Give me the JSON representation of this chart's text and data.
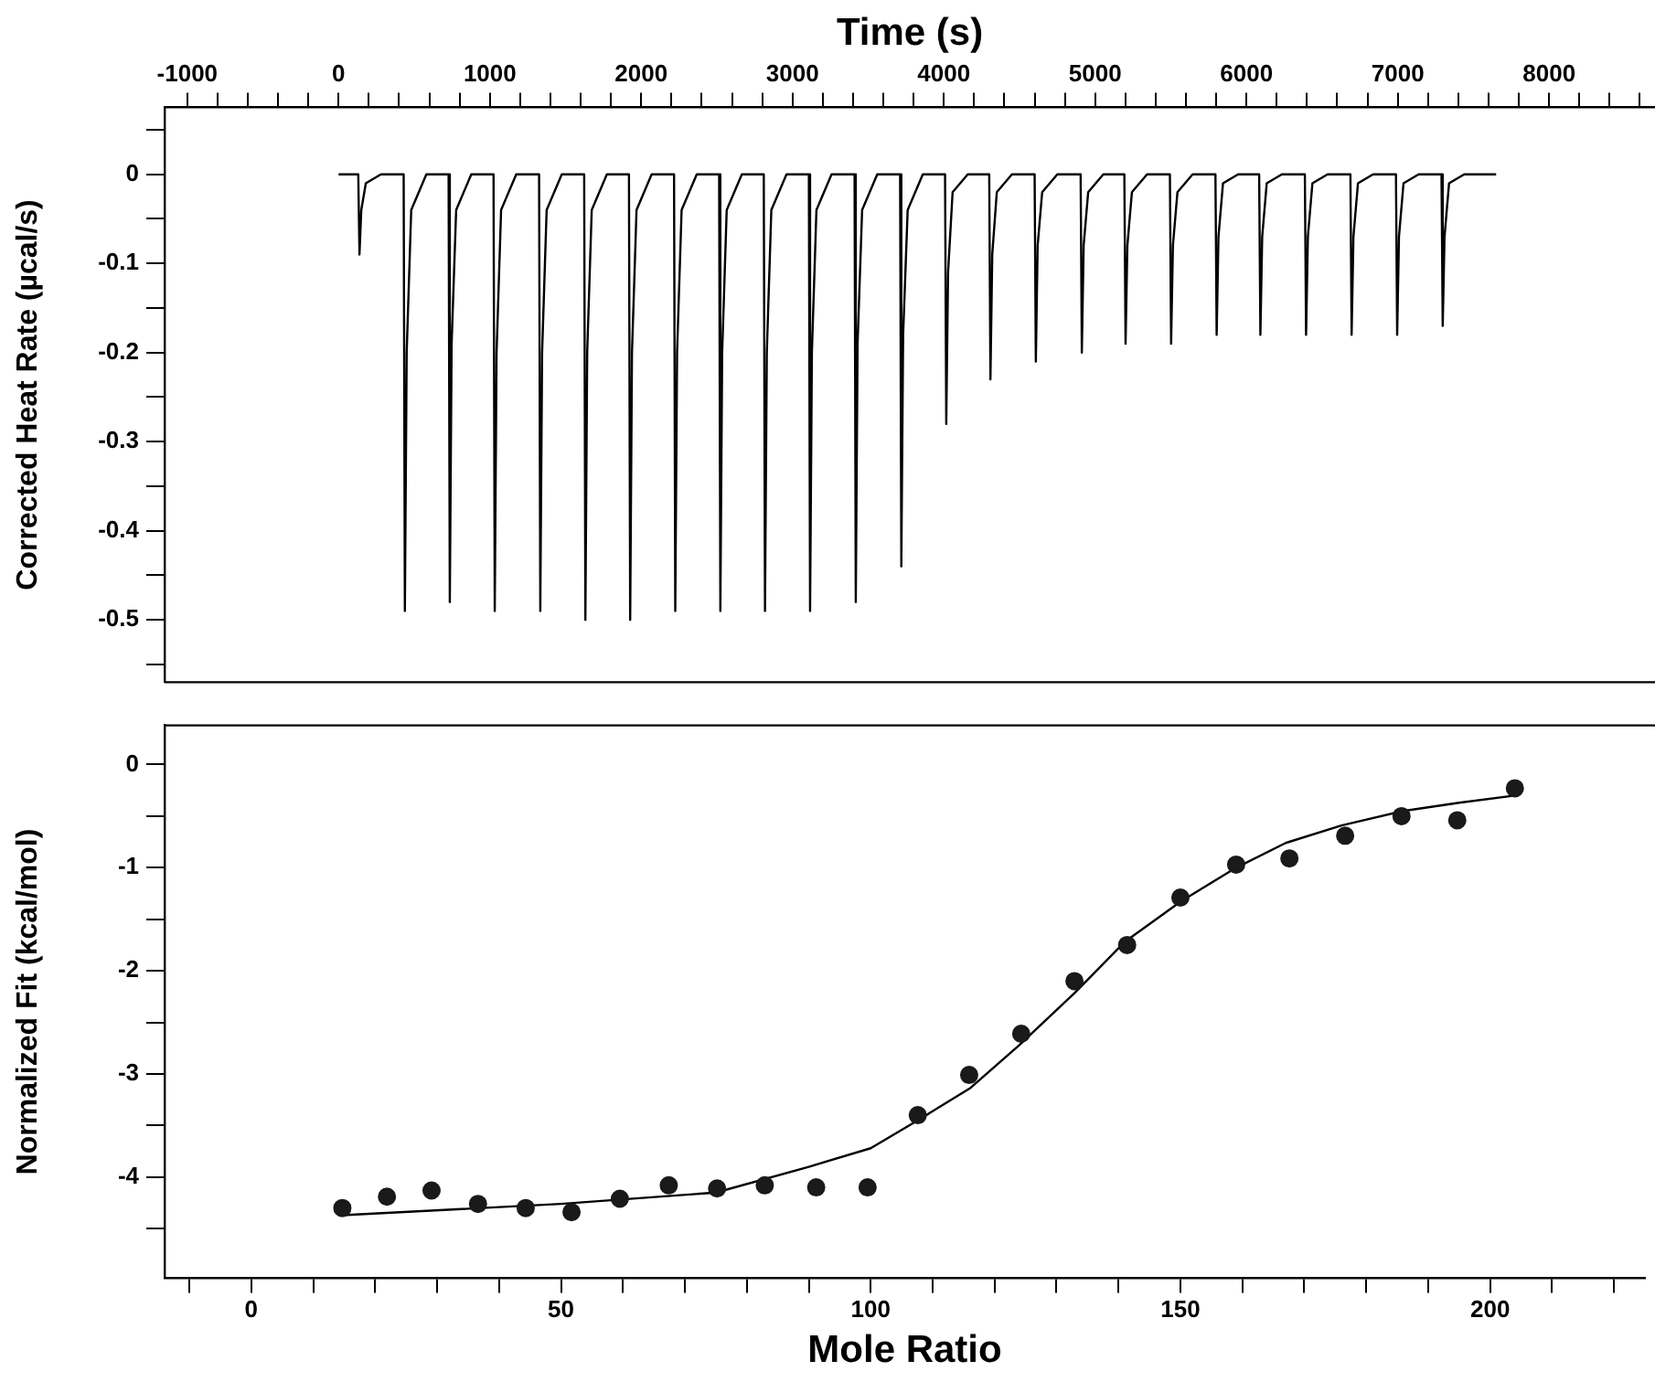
{
  "chart_data": [
    {
      "type": "line",
      "xlabel": "Time (s)",
      "ylabel": "Corrected Heat Rate (µcal/s)",
      "xlim": [
        -1150,
        8700
      ],
      "ylim": [
        -0.57,
        0.075
      ],
      "xticks": [
        -1000,
        {
          "value": -800,
          "label": null
        },
        {
          "value": -600,
          "label": null
        },
        {
          "value": -400,
          "label": null
        },
        {
          "value": -200,
          "label": null
        },
        0,
        {
          "value": 200,
          "label": null
        },
        {
          "value": 400,
          "label": null
        },
        {
          "value": 600,
          "label": null
        },
        {
          "value": 800,
          "label": null
        },
        1000,
        {
          "value": 1200,
          "label": null
        },
        {
          "value": 1400,
          "label": null
        },
        {
          "value": 1600,
          "label": null
        },
        {
          "value": 1800,
          "label": null
        },
        2000,
        {
          "value": 2200,
          "label": null
        },
        {
          "value": 2400,
          "label": null
        },
        {
          "value": 2600,
          "label": null
        },
        {
          "value": 2800,
          "label": null
        },
        3000,
        {
          "value": 3200,
          "label": null
        },
        {
          "value": 3400,
          "label": null
        },
        {
          "value": 3600,
          "label": null
        },
        {
          "value": 3800,
          "label": null
        },
        4000,
        {
          "value": 4200,
          "label": null
        },
        {
          "value": 4400,
          "label": null
        },
        {
          "value": 4600,
          "label": null
        },
        {
          "value": 4800,
          "label": null
        },
        5000,
        {
          "value": 5200,
          "label": null
        },
        {
          "value": 5400,
          "label": null
        },
        {
          "value": 5600,
          "label": null
        },
        {
          "value": 5800,
          "label": null
        },
        6000,
        {
          "value": 6200,
          "label": null
        },
        {
          "value": 6400,
          "label": null
        },
        {
          "value": 6600,
          "label": null
        },
        {
          "value": 6800,
          "label": null
        },
        7000,
        {
          "value": 7200,
          "label": null
        },
        {
          "value": 7400,
          "label": null
        },
        {
          "value": 7600,
          "label": null
        },
        {
          "value": 7800,
          "label": null
        },
        8000,
        {
          "value": 8200,
          "label": null
        },
        {
          "value": 8400,
          "label": null
        },
        {
          "value": 8600,
          "label": null
        }
      ],
      "yticks": [
        {
          "value": 0.05,
          "label": null
        },
        0,
        {
          "value": -0.05,
          "label": null
        },
        -0.1,
        {
          "value": -0.15,
          "label": null
        },
        -0.2,
        {
          "value": -0.25,
          "label": null
        },
        -0.3,
        {
          "value": -0.35,
          "label": null
        },
        -0.4,
        {
          "value": -0.45,
          "label": null
        },
        -0.5,
        {
          "value": -0.55,
          "label": null
        }
      ],
      "series": [
        {
          "color": "#000000",
          "x": [
            0,
            130,
            138,
            150,
            180,
            280,
            430,
            438,
            450,
            480,
            580,
            727,
            735,
            747,
            777,
            877,
            1024,
            1032,
            1044,
            1074,
            1174,
            1325,
            1333,
            1345,
            1375,
            1475,
            1623,
            1631,
            1643,
            1673,
            1773,
            1919,
            1927,
            1939,
            1969,
            2069,
            2217,
            2225,
            2237,
            2267,
            2367,
            2515,
            2523,
            2535,
            2565,
            2665,
            2810,
            2818,
            2830,
            2860,
            2960,
            3108,
            3116,
            3128,
            3158,
            3258,
            3410,
            3418,
            3430,
            3460,
            3560,
            3711,
            3719,
            3731,
            3761,
            3861,
            4008,
            4016,
            4028,
            4058,
            4158,
            4300,
            4308,
            4320,
            4350,
            4450,
            4600,
            4608,
            4620,
            4650,
            4750,
            4904,
            4912,
            4924,
            4954,
            5054,
            5193,
            5201,
            5213,
            5243,
            5343,
            5494,
            5502,
            5514,
            5544,
            5644,
            5795,
            5803,
            5815,
            5845,
            5945,
            6084,
            6092,
            6104,
            6134,
            6234,
            6386,
            6394,
            6406,
            6436,
            6536,
            6687,
            6695,
            6707,
            6737,
            6837,
            6988,
            6996,
            7008,
            7038,
            7138,
            7289,
            7297,
            7309,
            7339,
            7439,
            7650
          ],
          "values": [
            0,
            0,
            -0.09,
            -0.04,
            -0.01,
            0,
            0,
            -0.49,
            -0.2,
            -0.04,
            0,
            0,
            -0.48,
            -0.19,
            -0.04,
            0,
            0,
            -0.49,
            -0.2,
            -0.04,
            0,
            0,
            -0.49,
            -0.2,
            -0.04,
            0,
            0,
            -0.5,
            -0.2,
            -0.04,
            0,
            0,
            -0.5,
            -0.2,
            -0.04,
            0,
            0,
            -0.49,
            -0.2,
            -0.04,
            0,
            0,
            -0.49,
            -0.2,
            -0.04,
            0,
            0,
            -0.49,
            -0.2,
            -0.04,
            0,
            0,
            -0.49,
            -0.2,
            -0.04,
            0,
            0,
            -0.48,
            -0.19,
            -0.04,
            0,
            0,
            -0.44,
            -0.18,
            -0.04,
            0,
            0,
            -0.28,
            -0.11,
            -0.02,
            0,
            0,
            -0.23,
            -0.09,
            -0.02,
            0,
            0,
            -0.21,
            -0.08,
            -0.02,
            0,
            0,
            -0.2,
            -0.08,
            -0.02,
            0,
            0,
            -0.19,
            -0.08,
            -0.02,
            0,
            0,
            -0.19,
            -0.08,
            -0.02,
            0,
            0,
            -0.18,
            -0.07,
            -0.01,
            0,
            0,
            -0.18,
            -0.07,
            -0.01,
            0,
            0,
            -0.18,
            -0.07,
            -0.01,
            0,
            0,
            -0.18,
            -0.07,
            -0.01,
            0,
            0,
            -0.18,
            -0.07,
            -0.01,
            0,
            0,
            -0.17,
            -0.07,
            -0.01,
            0,
            0
          ]
        }
      ]
    },
    {
      "type": "scatter",
      "xlabel": "Mole Ratio",
      "ylabel": "Normalized Fit (kcal/mol)",
      "xlim": [
        -14,
        225
      ],
      "ylim": [
        -4.98,
        0.38
      ],
      "xticks": [
        {
          "value": -10,
          "label": null
        },
        0,
        {
          "value": 10,
          "label": null
        },
        {
          "value": 20,
          "label": null
        },
        {
          "value": 30,
          "label": null
        },
        {
          "value": 40,
          "label": null
        },
        50,
        {
          "value": 60,
          "label": null
        },
        {
          "value": 70,
          "label": null
        },
        {
          "value": 80,
          "label": null
        },
        {
          "value": 90,
          "label": null
        },
        100,
        {
          "value": 110,
          "label": null
        },
        {
          "value": 120,
          "label": null
        },
        {
          "value": 130,
          "label": null
        },
        {
          "value": 140,
          "label": null
        },
        150,
        {
          "value": 160,
          "label": null
        },
        {
          "value": 170,
          "label": null
        },
        {
          "value": 180,
          "label": null
        },
        {
          "value": 190,
          "label": null
        },
        200,
        {
          "value": 210,
          "label": null
        },
        {
          "value": 220,
          "label": null
        }
      ],
      "yticks": [
        0,
        {
          "value": -0.5,
          "label": null
        },
        -1,
        {
          "value": -1.5,
          "label": null
        },
        -2,
        {
          "value": -2.5,
          "label": null
        },
        -3,
        {
          "value": -3.5,
          "label": null
        },
        -4,
        {
          "value": -4.5,
          "label": null
        }
      ],
      "series": [
        {
          "type": "scatter",
          "color": "#1a1a1a",
          "marker": "circle",
          "x": [
            14.7,
            21.9,
            29.1,
            36.6,
            44.3,
            51.7,
            59.5,
            67.4,
            75.2,
            82.9,
            91.2,
            99.5,
            107.6,
            115.9,
            124.3,
            132.9,
            141.4,
            150.0,
            159.0,
            167.6,
            176.6,
            185.7,
            194.7,
            204.0
          ],
          "values": [
            -4.3,
            -4.19,
            -4.13,
            -4.26,
            -4.3,
            -4.34,
            -4.21,
            -4.08,
            -4.11,
            -4.08,
            -4.1,
            -4.1,
            -3.4,
            -3.01,
            -2.61,
            -2.1,
            -1.75,
            -1.29,
            -0.97,
            -0.91,
            -0.69,
            -0.5,
            -0.54,
            -0.23
          ]
        },
        {
          "type": "line",
          "color": "#000000",
          "marker": "none",
          "x": [
            14.7,
            50,
            75,
            90,
            100,
            107.6,
            116,
            124,
            133,
            141,
            150,
            159,
            167,
            176,
            186,
            195,
            204
          ],
          "values": [
            -4.37,
            -4.26,
            -4.15,
            -3.9,
            -3.72,
            -3.45,
            -3.14,
            -2.72,
            -2.21,
            -1.72,
            -1.33,
            -1.0,
            -0.76,
            -0.59,
            -0.45,
            -0.37,
            -0.3
          ]
        }
      ]
    }
  ]
}
